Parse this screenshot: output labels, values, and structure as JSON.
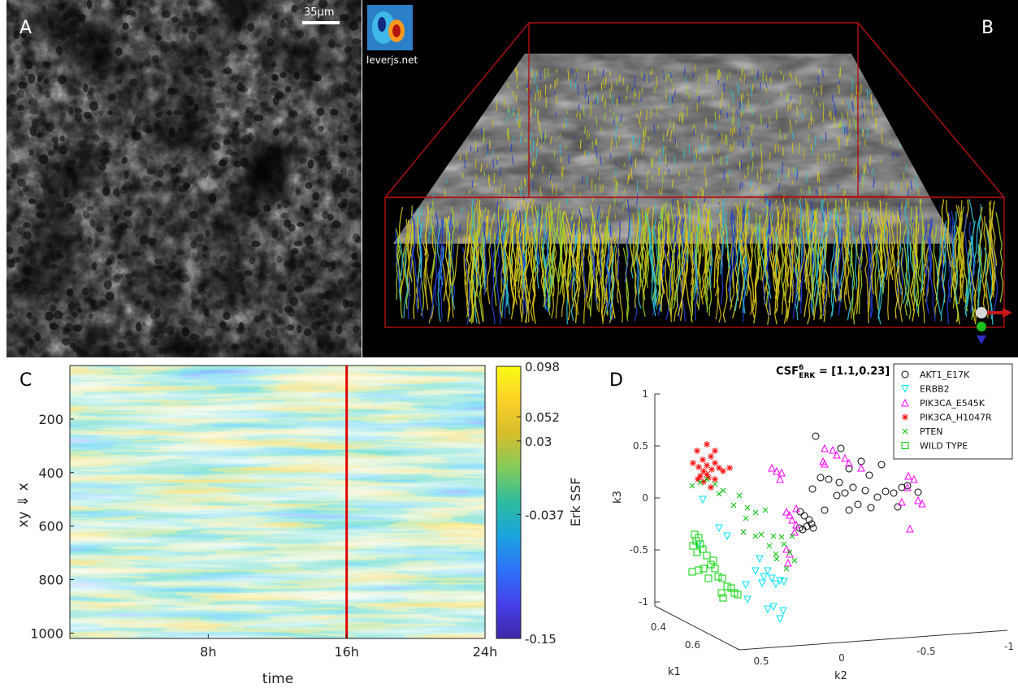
{
  "panel_a": {
    "label": "A",
    "scalebar_text": "35μm"
  },
  "panel_b": {
    "label": "B",
    "logo_text": "leverjs.net"
  },
  "panel_c": {
    "label": "C",
    "chart_data": {
      "type": "heatmap",
      "ylabel": "xy ⇓ x",
      "xlabel": "time",
      "y_ticks": [
        "200",
        "400",
        "600",
        "800",
        "1000"
      ],
      "y_tick_values": [
        200,
        400,
        600,
        800,
        1000
      ],
      "ylim": [
        0,
        1020
      ],
      "x_ticks": [
        "8h",
        "16h",
        "24h"
      ],
      "x_tick_values": [
        8,
        16,
        24
      ],
      "xlim": [
        0,
        24
      ],
      "marker_line_x": 16,
      "marker_color": "#e00000",
      "colorbar": {
        "label": "Erk SSF",
        "ticks": [
          "0.098",
          "0.052",
          "0.03",
          "-0.037",
          "-0.15"
        ],
        "tick_values": [
          0.098,
          0.052,
          0.03,
          -0.037,
          -0.15
        ],
        "range": [
          -0.15,
          0.098
        ]
      },
      "colormap": [
        "#3e26a8",
        "#4740e9",
        "#2d71f8",
        "#1aa3df",
        "#2dbca0",
        "#81cb5c",
        "#d5bd2c",
        "#fbd128",
        "#f9fb14"
      ]
    }
  },
  "panel_d": {
    "label": "D",
    "chart_data": {
      "type": "scatter",
      "title_main": "CSF",
      "title_sup": "6",
      "title_sub": "ERK",
      "title_rest": " = [1.1,0.23]",
      "zlabel": "k3",
      "xlabel": "k1",
      "ylabel": "k2",
      "z_ticks": [
        "1",
        "0.5",
        "0",
        "-0.5",
        "-1"
      ],
      "x_ticks": [
        "0.4",
        "0.6"
      ],
      "y_ticks": [
        "0.5",
        "0",
        "-0.5",
        "-1"
      ],
      "series": [
        {
          "name": "AKT1_E17K",
          "marker": "circle",
          "color": "#000000",
          "points": [
            [
              1004,
              537
            ],
            [
              1035,
              552
            ],
            [
              1060,
              568
            ],
            [
              1085,
              572
            ],
            [
              1045,
              577
            ],
            [
              1070,
              585
            ],
            [
              1010,
              588
            ],
            [
              1020,
              590
            ],
            [
              1033,
              594
            ],
            [
              1050,
              600
            ],
            [
              1000,
              602
            ],
            [
              1090,
              605
            ],
            [
              1065,
              604
            ],
            [
              1040,
              607
            ],
            [
              1030,
              610
            ],
            [
              1080,
              612
            ],
            [
              1110,
              600
            ],
            [
              1117,
              598
            ],
            [
              1100,
              607
            ],
            [
              1056,
              621
            ],
            [
              1072,
              625
            ],
            [
              1105,
              624
            ],
            [
              1130,
              606
            ],
            [
              1015,
              628
            ],
            [
              1045,
              628
            ],
            [
              985,
              630
            ],
            [
              990,
              635
            ],
            [
              996,
              640
            ],
            [
              999,
              645
            ],
            [
              993,
              648
            ],
            [
              1001,
              650
            ],
            [
              988,
              652
            ],
            [
              984,
              650
            ]
          ]
        },
        {
          "name": "ERBB2",
          "marker": "triangle-down",
          "color": "#00e0ff",
          "points": [
            [
              865,
              615
            ],
            [
              885,
              650
            ],
            [
              895,
              660
            ],
            [
              860,
              670
            ],
            [
              935,
              688
            ],
            [
              945,
              703
            ],
            [
              930,
              703
            ],
            [
              940,
              710
            ],
            [
              950,
              712
            ],
            [
              960,
              715
            ],
            [
              938,
              718
            ],
            [
              955,
              719
            ],
            [
              965,
              716
            ],
            [
              918,
              720
            ],
            [
              920,
              738
            ],
            [
              945,
              750
            ],
            [
              952,
              747
            ],
            [
              964,
              752
            ],
            [
              960,
              762
            ]
          ]
        },
        {
          "name": "PIK3CA_E545K",
          "marker": "triangle-up",
          "color": "#ff00ff",
          "points": [
            [
              1015,
              552
            ],
            [
              1025,
              554
            ],
            [
              1030,
              560
            ],
            [
              1040,
              564
            ],
            [
              1045,
              570
            ],
            [
              1060,
              576
            ],
            [
              950,
              576
            ],
            [
              956,
              580
            ],
            [
              962,
              582
            ],
            [
              960,
              590
            ],
            [
              1118,
              586
            ],
            [
              1125,
              590
            ],
            [
              1117,
              600
            ],
            [
              1013,
              568
            ],
            [
              1015,
              571
            ],
            [
              1130,
              616
            ],
            [
              1135,
              620
            ],
            [
              1110,
              618
            ],
            [
              1120,
              651
            ],
            [
              980,
              626
            ],
            [
              968,
              630
            ],
            [
              972,
              634
            ],
            [
              975,
              640
            ],
            [
              980,
              646
            ],
            [
              978,
              655
            ],
            [
              968,
              676
            ],
            [
              972,
              682
            ],
            [
              970,
              693
            ]
          ]
        },
        {
          "name": "PIK3CA_H1047R",
          "marker": "star",
          "color": "#ff0000",
          "points": [
            [
              870,
              547
            ],
            [
              858,
              555
            ],
            [
              880,
              555
            ],
            [
              875,
              562
            ],
            [
              865,
              566
            ],
            [
              853,
              570
            ],
            [
              880,
              570
            ],
            [
              870,
              573
            ],
            [
              860,
              575
            ],
            [
              876,
              578
            ],
            [
              866,
              580
            ],
            [
              870,
              584
            ],
            [
              862,
              586
            ],
            [
              872,
              588
            ],
            [
              880,
              590
            ],
            [
              859,
              590
            ],
            [
              866,
              593
            ],
            [
              890,
              580
            ],
            [
              898,
              576
            ],
            [
              885,
              576
            ],
            [
              875,
              600
            ]
          ]
        },
        {
          "name": "PTEN",
          "marker": "cross",
          "color": "#00c000",
          "points": [
            [
              852,
              598
            ],
            [
              862,
              594
            ],
            [
              870,
              590
            ],
            [
              880,
              596
            ],
            [
              890,
              604
            ],
            [
              885,
              608
            ],
            [
              910,
              610
            ],
            [
              903,
              622
            ],
            [
              920,
              625
            ],
            [
              930,
              631
            ],
            [
              942,
              628
            ],
            [
              915,
              655
            ],
            [
              937,
              658
            ],
            [
              952,
              660
            ],
            [
              962,
              661
            ],
            [
              975,
              660
            ],
            [
              965,
              670
            ],
            [
              972,
              680
            ],
            [
              955,
              682
            ],
            [
              978,
              690
            ],
            [
              968,
              700
            ],
            [
              956,
              688
            ],
            [
              947,
              672
            ],
            [
              930,
              660
            ],
            [
              918,
              638
            ]
          ]
        },
        {
          "name": "WILD TYPE",
          "marker": "square",
          "color": "#00d000",
          "points": [
            [
              855,
              658
            ],
            [
              860,
              662
            ],
            [
              857,
              666
            ],
            [
              862,
              670
            ],
            [
              853,
              672
            ],
            [
              865,
              676
            ],
            [
              858,
              680
            ],
            [
              870,
              684
            ],
            [
              878,
              690
            ],
            [
              875,
              695
            ],
            [
              866,
              700
            ],
            [
              860,
              702
            ],
            [
              852,
              704
            ],
            [
              880,
              700
            ],
            [
              884,
              710
            ],
            [
              889,
              712
            ],
            [
              872,
              712
            ],
            [
              895,
              722
            ],
            [
              900,
              724
            ],
            [
              904,
              730
            ],
            [
              908,
              732
            ],
            [
              890,
              736
            ],
            [
              888,
              730
            ]
          ]
        }
      ]
    }
  }
}
